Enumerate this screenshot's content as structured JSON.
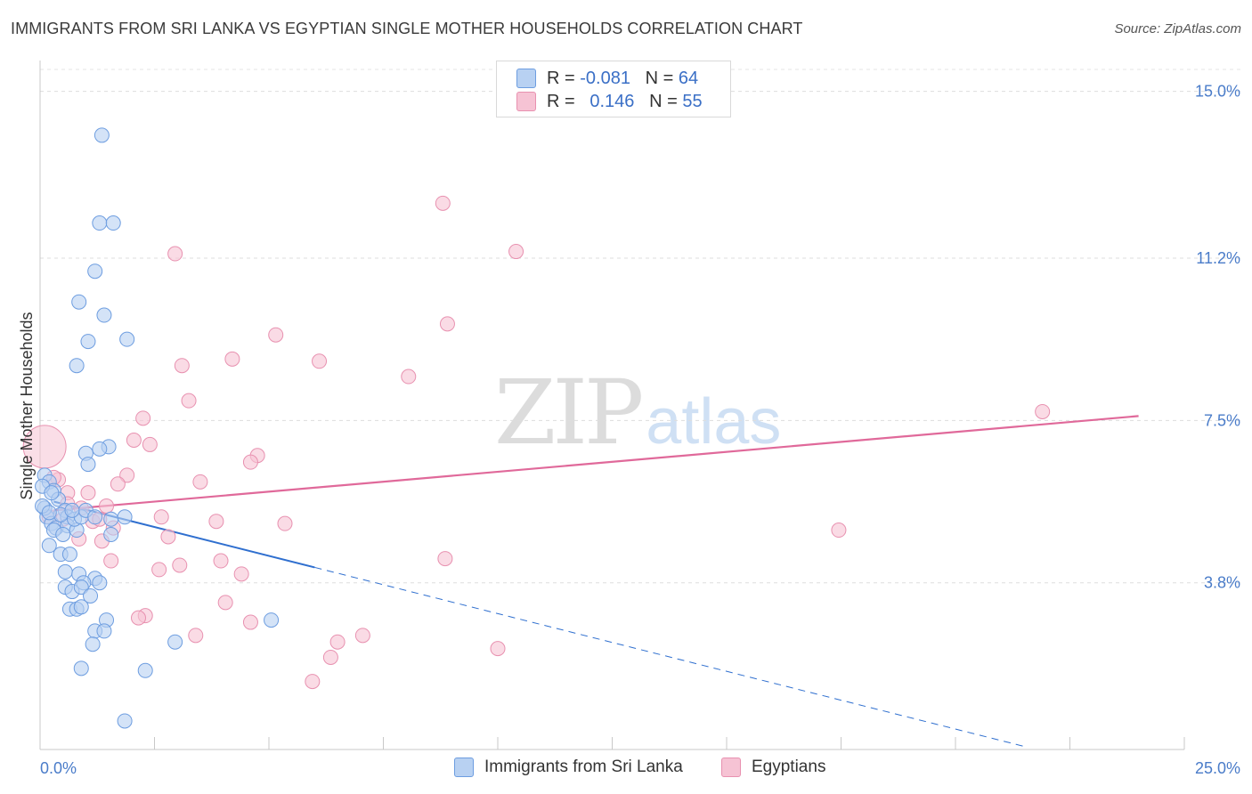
{
  "header": {
    "title": "IMMIGRANTS FROM SRI LANKA VS EGYPTIAN SINGLE MOTHER HOUSEHOLDS CORRELATION CHART",
    "source": "Source: ZipAtlas.com"
  },
  "watermark": {
    "part1": "ZIP",
    "part2": "atlas"
  },
  "legend": {
    "rows": [
      {
        "r_label": "R =",
        "r_value": "-0.081",
        "n_label": "N =",
        "n_value": "64"
      },
      {
        "r_label": "R =",
        "r_value": "0.146",
        "n_label": "N =",
        "n_value": "55"
      }
    ]
  },
  "bottom_legend": {
    "series1": "Immigrants from Sri Lanka",
    "series2": "Egyptians"
  },
  "colors": {
    "blue_fill": "#b8d1f2",
    "blue_stroke": "#6d9de0",
    "blue_line": "#2f6fcf",
    "pink_fill": "#f6c3d4",
    "pink_stroke": "#e891b0",
    "pink_line": "#e0699a"
  },
  "chart_data": {
    "type": "scatter",
    "title": "IMMIGRANTS FROM SRI LANKA VS EGYPTIAN SINGLE MOTHER HOUSEHOLDS CORRELATION CHART",
    "xlabel": "",
    "ylabel": "Single Mother Households",
    "xlim": [
      0,
      25
    ],
    "ylim": [
      0,
      15.5
    ],
    "x_tick_labels": [
      "0.0%",
      "25.0%"
    ],
    "y_ticks": [
      3.8,
      7.5,
      11.2,
      15.0
    ],
    "y_tick_labels": [
      "3.8%",
      "7.5%",
      "11.2%",
      "15.0%"
    ],
    "grid": true,
    "series": [
      {
        "name": "Immigrants from Sri Lanka",
        "r": -0.081,
        "n": 64,
        "trend": {
          "x0": 0.3,
          "y0": 5.65,
          "x1": 6.0,
          "y1": 4.15,
          "x_end": 21.5
        },
        "points": [
          [
            1.35,
            14.0
          ],
          [
            1.3,
            12.0
          ],
          [
            1.6,
            12.0
          ],
          [
            1.2,
            10.9
          ],
          [
            0.85,
            10.2
          ],
          [
            1.4,
            9.9
          ],
          [
            1.05,
            9.3
          ],
          [
            1.9,
            9.35
          ],
          [
            0.8,
            8.75
          ],
          [
            1.5,
            6.9
          ],
          [
            1.0,
            6.75
          ],
          [
            1.3,
            6.85
          ],
          [
            1.05,
            6.5
          ],
          [
            0.1,
            6.25
          ],
          [
            0.2,
            6.1
          ],
          [
            0.3,
            5.9
          ],
          [
            0.4,
            5.7
          ],
          [
            0.55,
            5.45
          ],
          [
            0.6,
            5.3
          ],
          [
            0.15,
            5.3
          ],
          [
            0.25,
            5.15
          ],
          [
            0.35,
            5.05
          ],
          [
            0.6,
            5.1
          ],
          [
            0.8,
            5.0
          ],
          [
            0.75,
            5.25
          ],
          [
            0.9,
            5.3
          ],
          [
            1.0,
            5.45
          ],
          [
            1.2,
            5.3
          ],
          [
            1.55,
            5.25
          ],
          [
            1.85,
            5.3
          ],
          [
            0.2,
            4.65
          ],
          [
            0.45,
            4.45
          ],
          [
            0.65,
            4.45
          ],
          [
            1.55,
            4.9
          ],
          [
            0.55,
            4.05
          ],
          [
            0.85,
            4.0
          ],
          [
            1.2,
            3.9
          ],
          [
            1.3,
            3.8
          ],
          [
            0.95,
            3.8
          ],
          [
            0.55,
            3.7
          ],
          [
            0.7,
            3.6
          ],
          [
            0.9,
            3.7
          ],
          [
            1.1,
            3.5
          ],
          [
            0.65,
            3.2
          ],
          [
            0.8,
            3.2
          ],
          [
            0.9,
            3.25
          ],
          [
            1.45,
            2.95
          ],
          [
            1.2,
            2.7
          ],
          [
            1.4,
            2.7
          ],
          [
            1.15,
            2.4
          ],
          [
            2.95,
            2.45
          ],
          [
            0.9,
            1.85
          ],
          [
            2.3,
            1.8
          ],
          [
            1.85,
            0.65
          ],
          [
            5.05,
            2.95
          ],
          [
            0.05,
            6.0
          ],
          [
            0.25,
            5.85
          ],
          [
            0.1,
            5.5
          ],
          [
            0.45,
            5.35
          ],
          [
            0.3,
            5.0
          ],
          [
            0.7,
            5.45
          ],
          [
            0.5,
            4.9
          ],
          [
            0.05,
            5.55
          ],
          [
            0.2,
            5.4
          ]
        ]
      },
      {
        "name": "Egyptians",
        "r": 0.146,
        "n": 55,
        "trend": {
          "x0": 0.3,
          "y0": 5.45,
          "x1": 24.0,
          "y1": 7.6
        },
        "points": [
          [
            8.8,
            12.45
          ],
          [
            2.95,
            11.3
          ],
          [
            10.4,
            11.35
          ],
          [
            8.9,
            9.7
          ],
          [
            5.15,
            9.45
          ],
          [
            4.2,
            8.9
          ],
          [
            6.1,
            8.85
          ],
          [
            3.1,
            8.75
          ],
          [
            8.05,
            8.5
          ],
          [
            3.25,
            7.95
          ],
          [
            2.25,
            7.55
          ],
          [
            21.9,
            7.7
          ],
          [
            2.05,
            7.05
          ],
          [
            2.4,
            6.95
          ],
          [
            4.75,
            6.7
          ],
          [
            4.6,
            6.55
          ],
          [
            1.9,
            6.25
          ],
          [
            3.5,
            6.1
          ],
          [
            0.4,
            6.15
          ],
          [
            1.7,
            6.05
          ],
          [
            0.6,
            5.85
          ],
          [
            1.05,
            5.85
          ],
          [
            1.45,
            5.55
          ],
          [
            0.9,
            5.5
          ],
          [
            0.2,
            5.3
          ],
          [
            0.5,
            5.25
          ],
          [
            1.15,
            5.2
          ],
          [
            2.65,
            5.3
          ],
          [
            3.85,
            5.2
          ],
          [
            5.35,
            5.15
          ],
          [
            1.6,
            5.05
          ],
          [
            1.3,
            5.25
          ],
          [
            17.45,
            5.0
          ],
          [
            2.8,
            4.85
          ],
          [
            0.85,
            4.8
          ],
          [
            1.35,
            4.75
          ],
          [
            8.85,
            4.35
          ],
          [
            1.55,
            4.3
          ],
          [
            3.95,
            4.3
          ],
          [
            3.05,
            4.2
          ],
          [
            2.6,
            4.1
          ],
          [
            4.4,
            4.0
          ],
          [
            4.05,
            3.35
          ],
          [
            2.3,
            3.05
          ],
          [
            2.15,
            3.0
          ],
          [
            4.6,
            2.9
          ],
          [
            7.05,
            2.6
          ],
          [
            3.4,
            2.6
          ],
          [
            6.5,
            2.45
          ],
          [
            10.0,
            2.3
          ],
          [
            6.35,
            2.1
          ],
          [
            5.95,
            1.55
          ],
          [
            0.6,
            5.6
          ],
          [
            0.3,
            6.2
          ],
          [
            0.1,
            6.9
          ]
        ]
      }
    ]
  }
}
